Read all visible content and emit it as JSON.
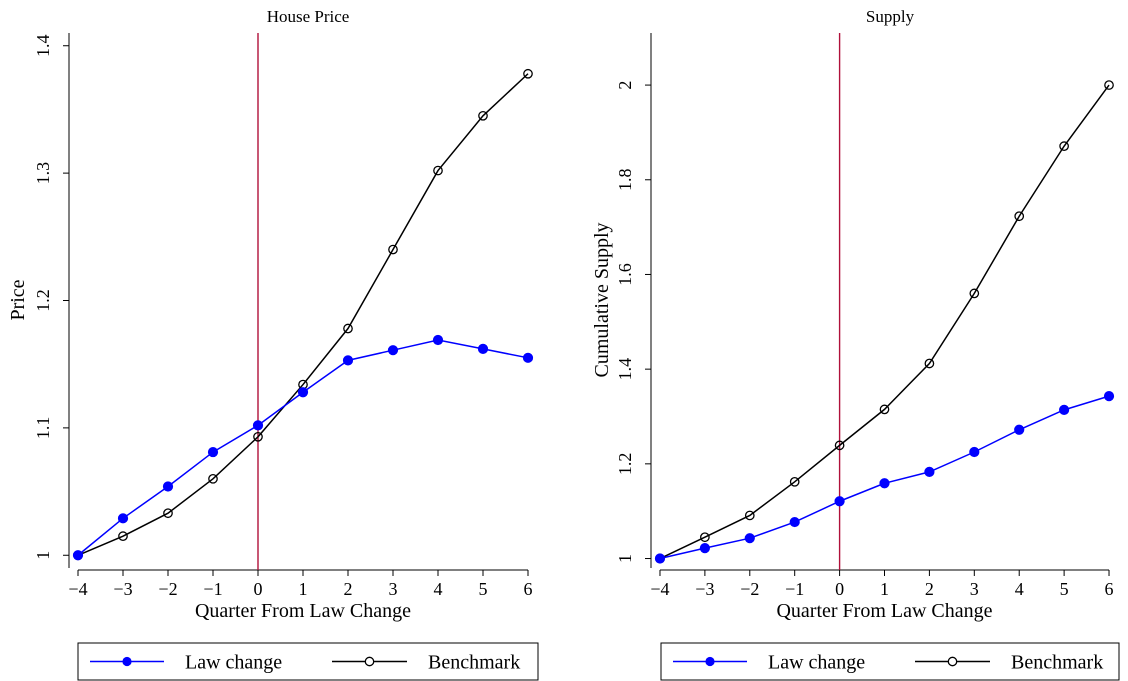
{
  "chart_data": [
    {
      "type": "line",
      "title": "House Price",
      "xlabel": "Quarter From Law Change",
      "ylabel": "Price",
      "x": [
        -4,
        -3,
        -2,
        -1,
        0,
        1,
        2,
        3,
        4,
        5,
        6
      ],
      "x_tick_labels": [
        "−4",
        "−3",
        "−2",
        "−1",
        "0",
        "1",
        "2",
        "3",
        "4",
        "5",
        "6"
      ],
      "xlim": [
        -4.2,
        6.2
      ],
      "ylim": [
        0.99,
        1.41
      ],
      "y_ticks": [
        1,
        1.1,
        1.2,
        1.3,
        1.4
      ],
      "y_tick_labels": [
        "1",
        "1.1",
        "1.2",
        "1.3",
        "1.4"
      ],
      "vline_x": 0,
      "grid": false,
      "legend_position": "bottom",
      "series": [
        {
          "name": "Law change",
          "color": "#0000ff",
          "marker": "filled-circle",
          "values": [
            1.0,
            1.029,
            1.054,
            1.081,
            1.102,
            1.128,
            1.153,
            1.161,
            1.169,
            1.162,
            1.155
          ]
        },
        {
          "name": "Benchmark",
          "color": "#000000",
          "marker": "hollow-circle",
          "values": [
            1.0,
            1.015,
            1.033,
            1.06,
            1.093,
            1.134,
            1.178,
            1.24,
            1.302,
            1.345,
            1.378
          ]
        }
      ]
    },
    {
      "type": "line",
      "title": "Supply",
      "xlabel": "Quarter From Law Change",
      "ylabel": "Cumulative Supply",
      "x": [
        -4,
        -3,
        -2,
        -1,
        0,
        1,
        2,
        3,
        4,
        5,
        6
      ],
      "x_tick_labels": [
        "−4",
        "−3",
        "−2",
        "−1",
        "0",
        "1",
        "2",
        "3",
        "4",
        "5",
        "6"
      ],
      "xlim": [
        -4.2,
        6.2
      ],
      "ylim": [
        0.98,
        2.11
      ],
      "y_ticks": [
        1,
        1.2,
        1.4,
        1.6,
        1.8,
        2
      ],
      "y_tick_labels": [
        "1",
        "1.2",
        "1.4",
        "1.6",
        "1.8",
        "2"
      ],
      "vline_x": 0,
      "grid": false,
      "legend_position": "bottom",
      "series": [
        {
          "name": "Law change",
          "color": "#0000ff",
          "marker": "filled-circle",
          "values": [
            1.0,
            1.022,
            1.043,
            1.077,
            1.121,
            1.159,
            1.183,
            1.225,
            1.272,
            1.314,
            1.343
          ]
        },
        {
          "name": "Benchmark",
          "color": "#000000",
          "marker": "hollow-circle",
          "values": [
            1.0,
            1.045,
            1.091,
            1.162,
            1.239,
            1.315,
            1.412,
            1.56,
            1.723,
            1.871,
            2.0
          ]
        }
      ]
    }
  ],
  "style": {
    "vline_color": "#b0103a",
    "axis_color": "#000000"
  }
}
